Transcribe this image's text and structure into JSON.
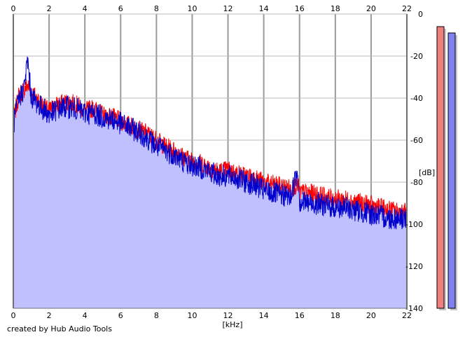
{
  "footer": {
    "credit": "created by Hub Audio Tools"
  },
  "chart_data": {
    "type": "area",
    "xlabel": "[kHz]",
    "ylabel": "[dB]",
    "xlim": [
      0,
      22
    ],
    "ylim": [
      -140,
      0
    ],
    "x_ticks": [
      0,
      2,
      4,
      6,
      8,
      10,
      12,
      14,
      16,
      18,
      20,
      22
    ],
    "y_ticks": [
      0,
      -20,
      -40,
      -60,
      -80,
      -100,
      -120,
      -140
    ],
    "grid": true,
    "series": [
      {
        "color": "#ff0000",
        "x": [
          0,
          0.3,
          0.6,
          0.8,
          1.0,
          1.4,
          1.8,
          2.0,
          2.5,
          3.0,
          3.5,
          4.0,
          4.5,
          5.0,
          5.5,
          6.0,
          6.5,
          7.0,
          7.5,
          8.0,
          8.5,
          9.0,
          9.5,
          10.0,
          10.5,
          11.0,
          11.5,
          12.0,
          12.5,
          13.0,
          13.5,
          14.0,
          14.5,
          15.0,
          15.5,
          15.9,
          16.0,
          16.5,
          17.0,
          17.5,
          18.0,
          18.5,
          19.0,
          19.5,
          20.0,
          20.5,
          21.0,
          21.5,
          22.0
        ],
        "values": [
          -50,
          -38,
          -35,
          -33,
          -36,
          -40,
          -44,
          -45,
          -42,
          -41,
          -42,
          -45,
          -44,
          -47,
          -48,
          -50,
          -52,
          -54,
          -56,
          -59,
          -62,
          -64,
          -67,
          -69,
          -70,
          -72,
          -74,
          -73,
          -75,
          -76,
          -77,
          -79,
          -80,
          -81,
          -82,
          -80,
          -84,
          -84,
          -85,
          -86,
          -87,
          -87,
          -88,
          -89,
          -90,
          -91,
          -92,
          -93,
          -93
        ]
      },
      {
        "color": "#0000cc",
        "x": [
          0,
          0.3,
          0.6,
          0.8,
          1.0,
          1.4,
          1.8,
          2.0,
          2.5,
          3.0,
          3.5,
          4.0,
          4.5,
          5.0,
          5.5,
          6.0,
          6.5,
          7.0,
          7.5,
          8.0,
          8.5,
          9.0,
          9.5,
          10.0,
          10.5,
          11.0,
          11.5,
          12.0,
          12.5,
          13.0,
          13.5,
          14.0,
          14.5,
          15.0,
          15.5,
          15.9,
          16.0,
          16.5,
          17.0,
          17.5,
          18.0,
          18.5,
          19.0,
          19.5,
          20.0,
          20.5,
          21.0,
          21.5,
          22.0
        ],
        "values": [
          -52,
          -40,
          -34,
          -21,
          -38,
          -42,
          -45,
          -47,
          -44,
          -43,
          -44,
          -46,
          -46,
          -48,
          -49,
          -51,
          -53,
          -55,
          -58,
          -62,
          -64,
          -66,
          -69,
          -71,
          -72,
          -74,
          -76,
          -76,
          -77,
          -79,
          -80,
          -83,
          -84,
          -85,
          -86,
          -73,
          -88,
          -89,
          -89,
          -90,
          -91,
          -91,
          -92,
          -93,
          -94,
          -95,
          -96,
          -96,
          -96
        ]
      }
    ],
    "fill_color": "#c0c0ff",
    "level_meters": [
      {
        "color": "#f08080",
        "level_db": -6
      },
      {
        "color": "#8080f0",
        "level_db": -9
      }
    ]
  }
}
